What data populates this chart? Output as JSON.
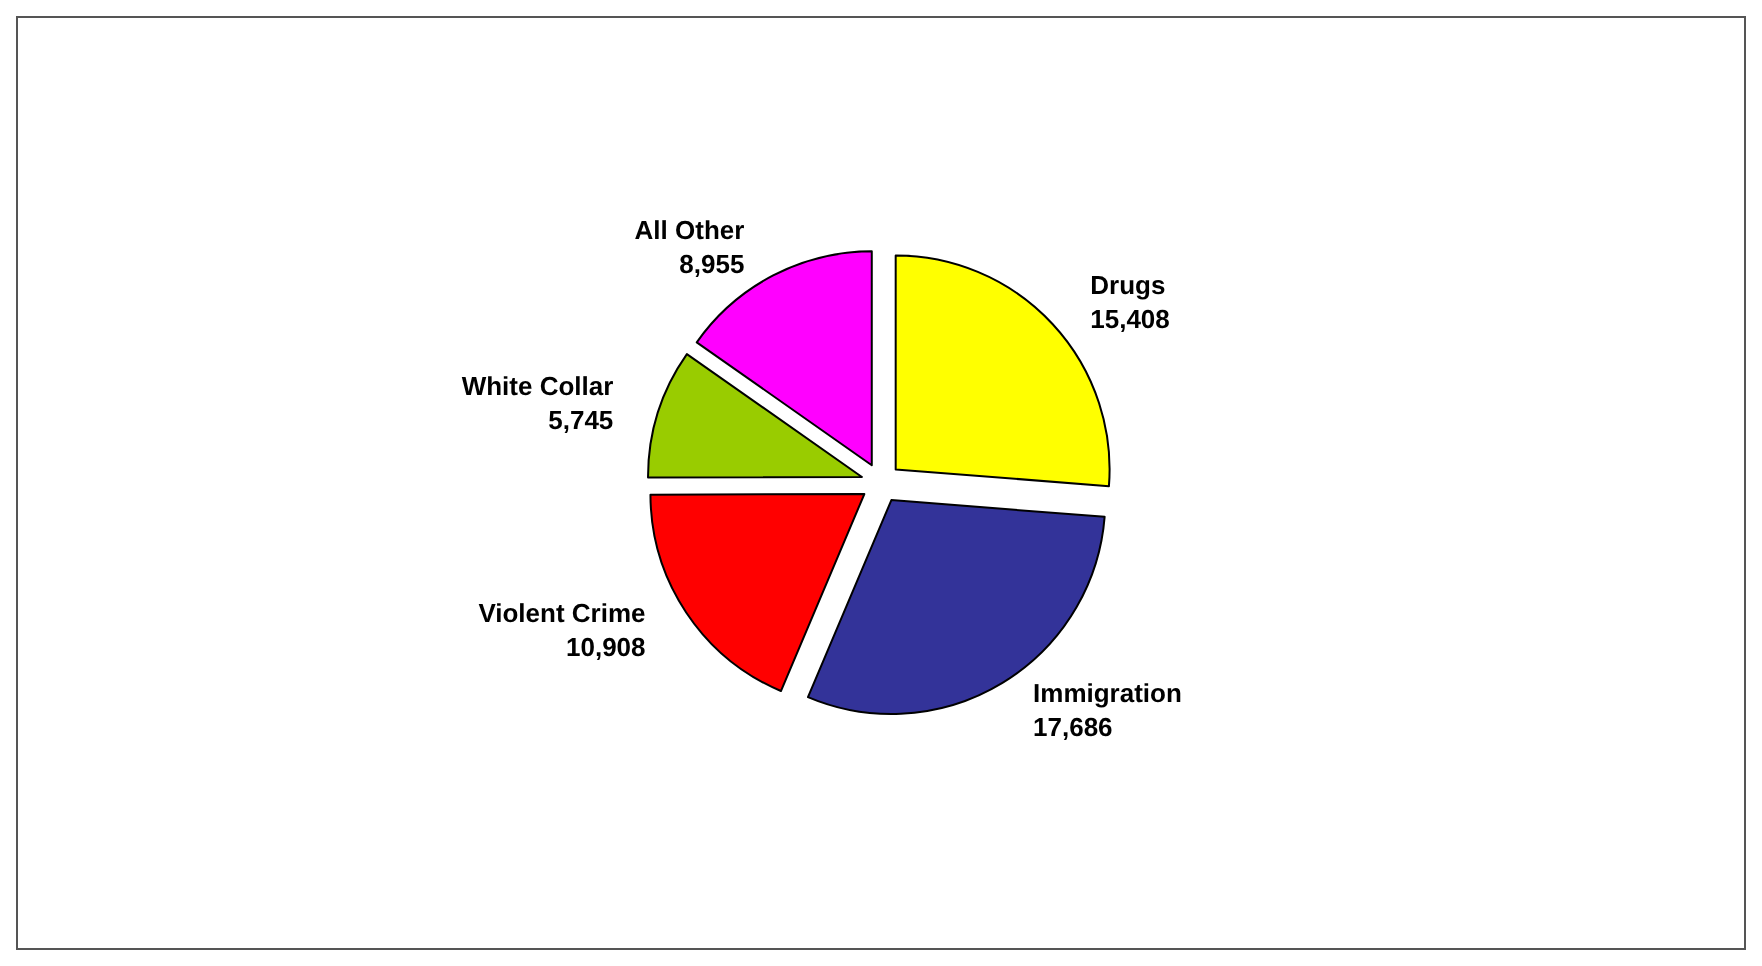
{
  "chart_data": {
    "type": "pie",
    "categories": [
      "Drugs",
      "Immigration",
      "Violent Crime",
      "White Collar",
      "All Other"
    ],
    "values": [
      15408,
      17686,
      10908,
      5745,
      8955
    ],
    "colors": [
      "#ffff00",
      "#333399",
      "#ff0000",
      "#99cc00",
      "#ff00ff"
    ],
    "value_labels": [
      "15,408",
      "17,686",
      "10,908",
      "5,745",
      "8,955"
    ],
    "legend": false
  }
}
